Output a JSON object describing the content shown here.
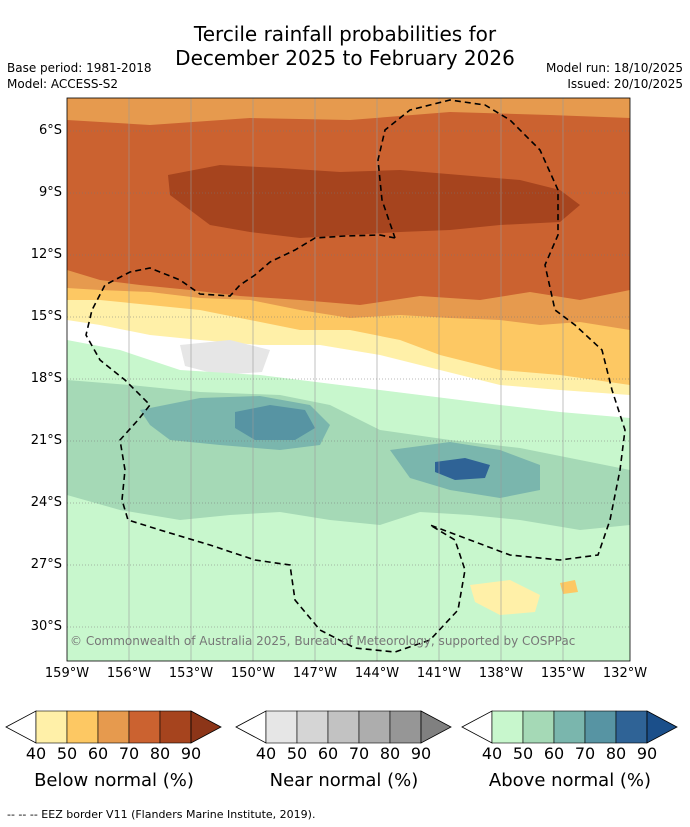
{
  "title": {
    "line1": "Tercile rainfall probabilities for",
    "line2": "December 2025 to February 2026"
  },
  "meta": {
    "base_period": "Base period: 1981-2018",
    "model": "Model: ACCESS-S2",
    "model_run": "Model run: 18/10/2025",
    "issued": "Issued: 20/10/2025"
  },
  "axes": {
    "lat_labels": [
      "6°S",
      "9°S",
      "12°S",
      "15°S",
      "18°S",
      "21°S",
      "24°S",
      "27°S",
      "30°S"
    ],
    "lon_labels": [
      "159°W",
      "156°W",
      "153°W",
      "150°W",
      "147°W",
      "144°W",
      "141°W",
      "138°W",
      "135°W",
      "132°W"
    ]
  },
  "copyright": "© Commonwealth of Australia 2025, Bureau of Meteorology, supported by COSPPac",
  "legends": [
    {
      "name": "below",
      "title": "Below normal (%)",
      "ticks": [
        "40",
        "50",
        "60",
        "70",
        "80",
        "90"
      ],
      "colors": [
        "#fff0a8",
        "#fdc863",
        "#e69a4e",
        "#cb6230",
        "#a6441e"
      ]
    },
    {
      "name": "near",
      "title": "Near normal (%)",
      "ticks": [
        "40",
        "50",
        "60",
        "70",
        "80",
        "90"
      ],
      "colors": [
        "#e6e6e6",
        "#d5d5d5",
        "#c2c2c2",
        "#adadad",
        "#969696"
      ]
    },
    {
      "name": "above",
      "title": "Above normal (%)",
      "ticks": [
        "40",
        "50",
        "60",
        "70",
        "80",
        "90"
      ],
      "colors": [
        "#c8f7cd",
        "#a5d9b6",
        "#7ab6ad",
        "#5794a3",
        "#2f6396"
      ]
    }
  ],
  "footnote": "--  --  -- EEZ border V11 (Flanders Marine Institute, 2019).",
  "map_colors": {
    "below40": "#fff0a8",
    "below50": "#fdc863",
    "below60": "#e69a4e",
    "below70": "#cb6230",
    "below80": "#a6441e",
    "near40": "#e6e6e6",
    "above40": "#c8f7cd",
    "above50": "#a5d9b6",
    "above60": "#7ab6ad",
    "above70": "#5794a3",
    "above80": "#2f6396"
  }
}
